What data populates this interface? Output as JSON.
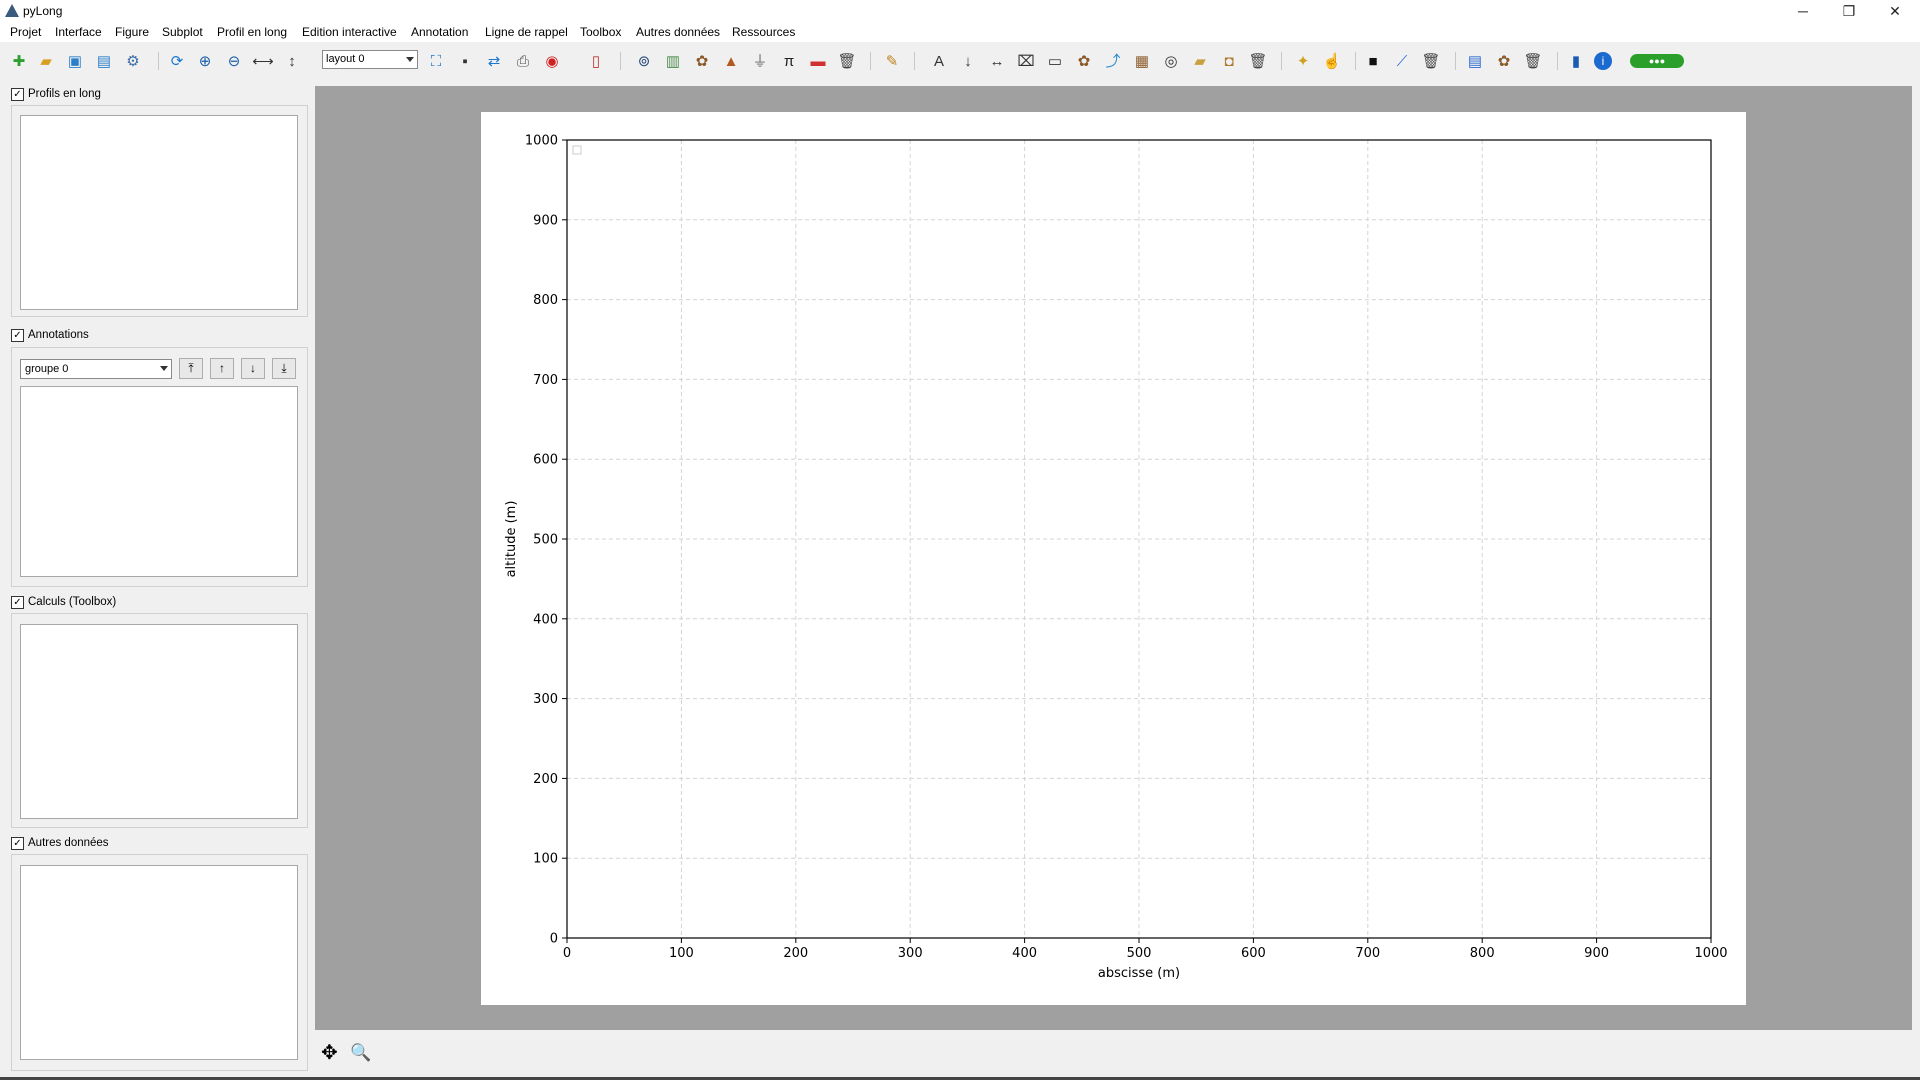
{
  "window": {
    "title": "pyLong",
    "controls": {
      "minimize": "─",
      "maximize": "❐",
      "close": "✕"
    }
  },
  "menubar": {
    "items": [
      "Projet",
      "Interface",
      "Figure",
      "Subplot",
      "Profil en long",
      "Edition interactive",
      "Annotation",
      "Ligne de rappel",
      "Toolbox",
      "Autres données",
      "Ressources"
    ]
  },
  "toolbar": {
    "layout_combo_value": "layout 0",
    "icons": [
      "new-project-icon",
      "open-folder-icon",
      "save-icon",
      "save-as-icon",
      "settings-link-icon",
      "refresh-view-icon",
      "zoom-in-icon",
      "zoom-out-icon",
      "horizontal-measure-icon",
      "vertical-measure-icon",
      "fit-frame-icon",
      "monitor-icon",
      "sync-icon",
      "printer-icon",
      "record-icon",
      "export-icon",
      "add-profile-icon",
      "table-icon",
      "palette-icon",
      "cone-icon",
      "funnel-icon",
      "pi-icon",
      "text-label-icon",
      "trash-icon",
      "pencil-icon",
      "font-icon",
      "down-arrow-icon",
      "double-arrow-icon",
      "text-box-icon",
      "rectangle-icon",
      "palette-icon",
      "chart-icon",
      "group-icon",
      "target-icon",
      "folder-icon",
      "box-icon",
      "trash-icon",
      "wand-icon",
      "cursor-edit-icon",
      "terminal-icon",
      "slope-icon",
      "trash-icon",
      "data-sheet-icon",
      "palette-icon",
      "trash-icon",
      "book-icon",
      "info-icon",
      "brand-badge-icon"
    ]
  },
  "panels": {
    "profiles": {
      "label": "Profils en long",
      "checked": true
    },
    "annotations": {
      "label": "Annotations",
      "checked": true,
      "group_value": "groupe 0",
      "buttons": [
        "⤒",
        "↑",
        "↓",
        "⤓"
      ]
    },
    "calculs": {
      "label": "Calculs (Toolbox)",
      "checked": true
    },
    "autres": {
      "label": "Autres données",
      "checked": true
    }
  },
  "chart_data": {
    "type": "line",
    "title": "",
    "xlabel": "abscisse (m)",
    "ylabel": "altitude (m)",
    "xlim": [
      0,
      1000
    ],
    "ylim": [
      0,
      1000
    ],
    "xticks": [
      0,
      100,
      200,
      300,
      400,
      500,
      600,
      700,
      800,
      900,
      1000
    ],
    "yticks": [
      0,
      100,
      200,
      300,
      400,
      500,
      600,
      700,
      800,
      900,
      1000
    ],
    "grid": true,
    "grid_style": "dashed",
    "series": []
  },
  "navbar": {
    "pan_icon": "✥",
    "zoom_icon": "🔍"
  }
}
